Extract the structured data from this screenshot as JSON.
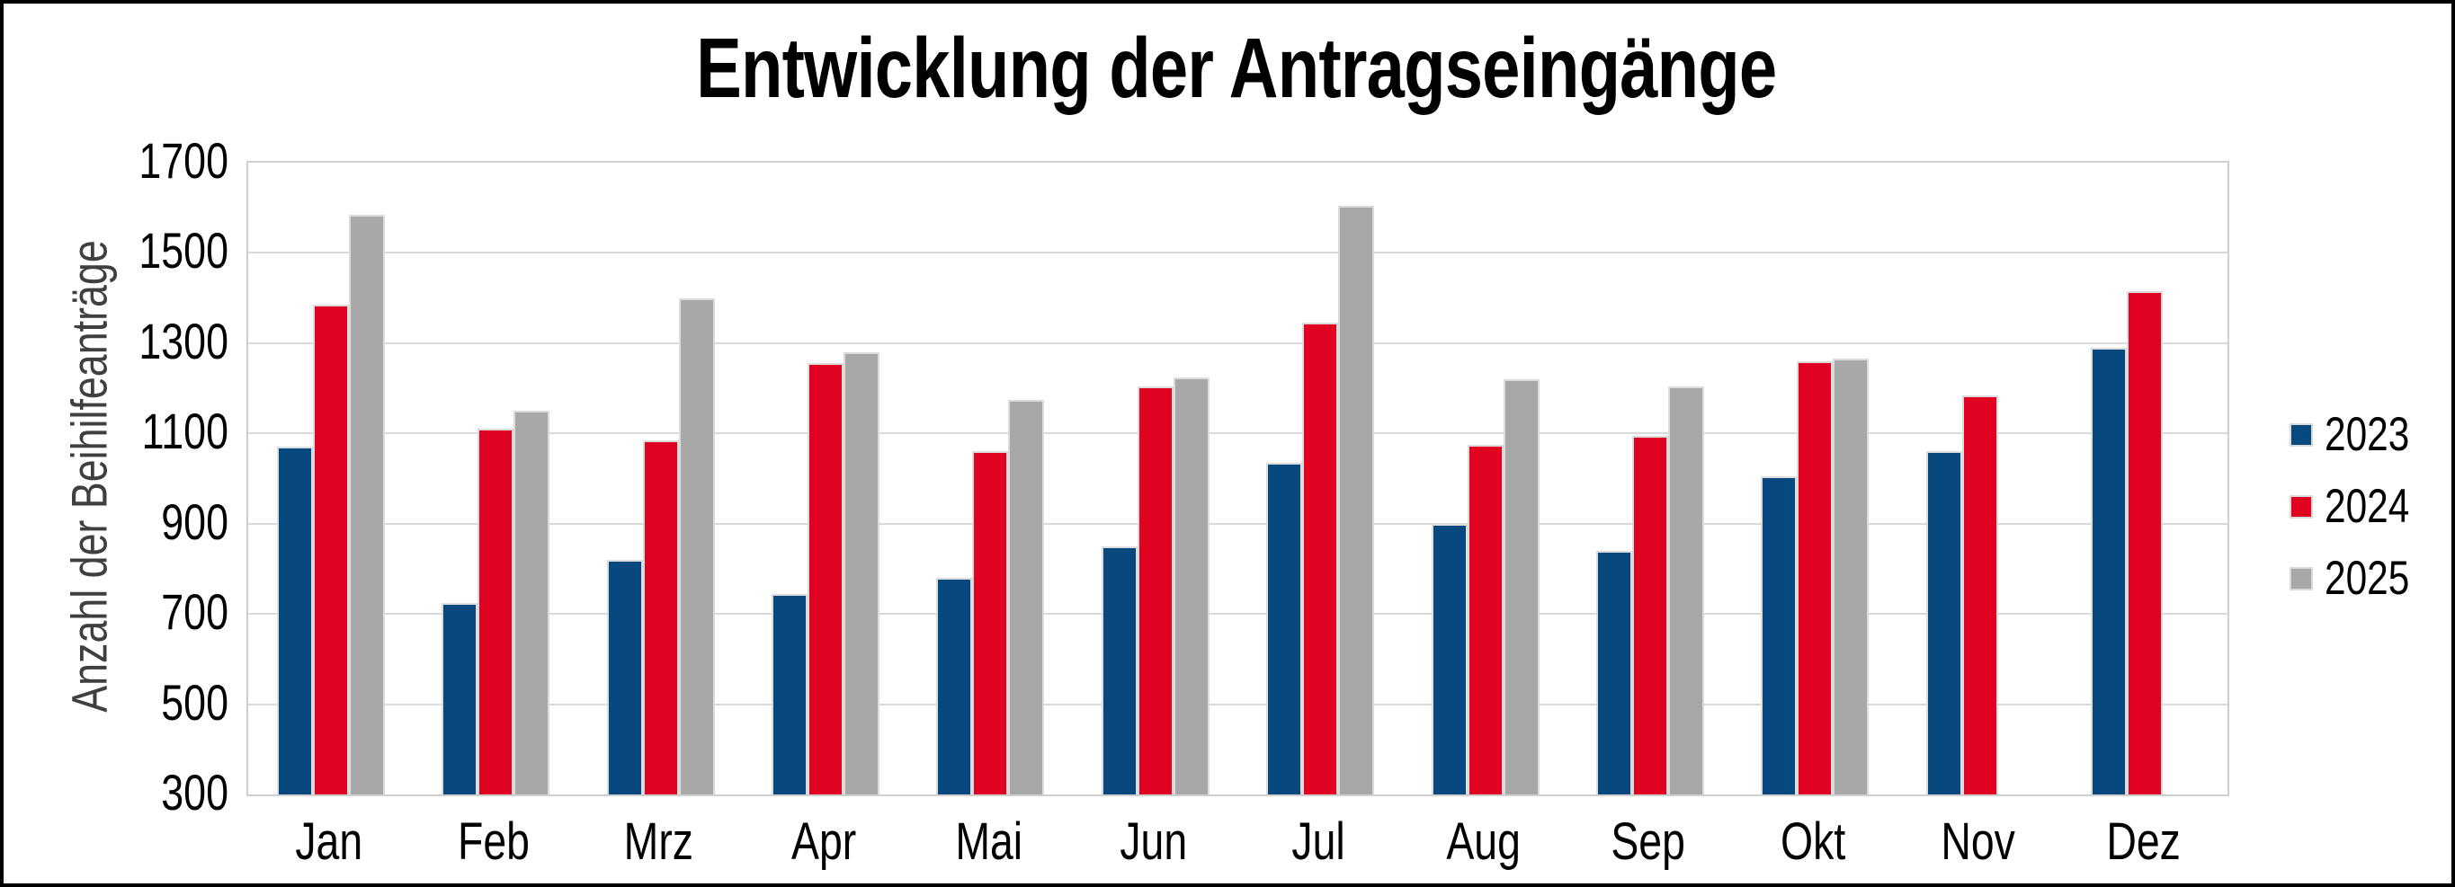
{
  "chart_data": {
    "type": "bar",
    "title": "Entwicklung der Antragseingänge",
    "ylabel": "Anzahl der Beihilfeanträge",
    "xlabel": "",
    "categories": [
      "Jan",
      "Feb",
      "Mrz",
      "Apr",
      "Mai",
      "Jun",
      "Jul",
      "Aug",
      "Sep",
      "Okt",
      "Nov",
      "Dez"
    ],
    "series": [
      {
        "name": "2023",
        "color": "#07497e",
        "values": [
          1070,
          725,
          820,
          745,
          780,
          850,
          1035,
          900,
          840,
          1005,
          1060,
          1290
        ]
      },
      {
        "name": "2024",
        "color": "#e00220",
        "values": [
          1385,
          1110,
          1085,
          1255,
          1060,
          1205,
          1345,
          1075,
          1095,
          1260,
          1185,
          1415
        ]
      },
      {
        "name": "2025",
        "color": "#a8a8a8",
        "values": [
          1585,
          1150,
          1400,
          1280,
          1175,
          1225,
          1605,
          1220,
          1205,
          1265,
          null,
          null
        ]
      }
    ],
    "ylim": [
      300,
      1700
    ],
    "ytick_step": 200,
    "grid": true,
    "gridline_step": 200,
    "legend_position": "right"
  },
  "colors": {
    "background": "#ffffff",
    "frame_border": "#000000",
    "gridline": "#d9d9d9",
    "plot_border": "#cfcfcf",
    "bar_border": "#dcdcdc",
    "axis_title": "#3f3f3f",
    "tick_label": "#000000"
  }
}
